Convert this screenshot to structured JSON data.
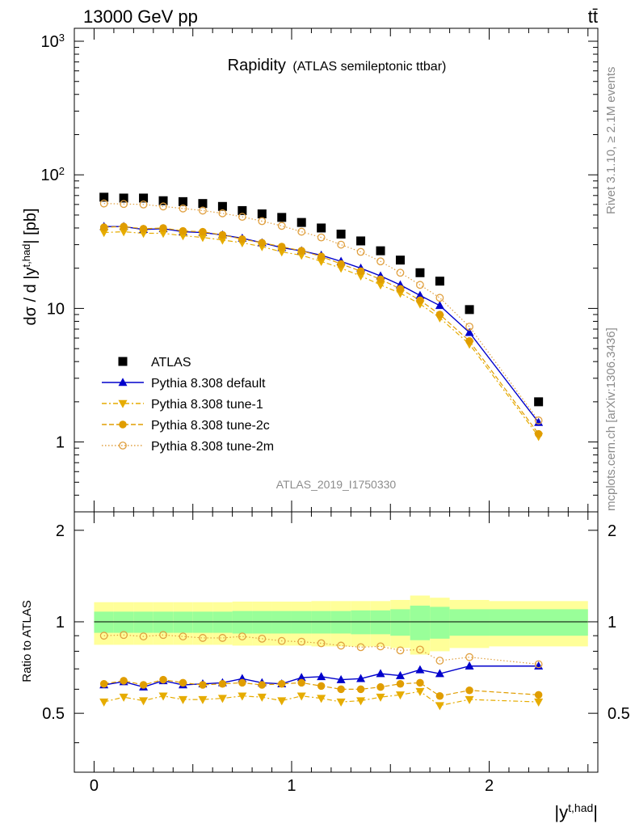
{
  "header": {
    "beam": "13000 GeV pp",
    "process": "tt̄",
    "title_main": "Rapidity",
    "title_sub": "(ATLAS semileptonic ttbar)",
    "analysis_id": "ATLAS_2019_I1750330",
    "side_rivet": "Rivet 3.1.10, ≥ 2.1M events",
    "side_mcplots": "mcplots.cern.ch [arXiv:1306.3436]"
  },
  "axes": {
    "main_ylabel": "dσ / d |y^t,had| [pb]",
    "ratio_ylabel": "Ratio to ATLAS",
    "xlabel": "|y^t,had|",
    "main_yticks": [
      {
        "v": 1,
        "label": "1"
      },
      {
        "v": 10,
        "label": "10"
      },
      {
        "v": 100,
        "label": "10²"
      },
      {
        "v": 1000,
        "label": "10³"
      }
    ],
    "ratio_yticks": [
      {
        "v": 0.5,
        "label": "0.5"
      },
      {
        "v": 1,
        "label": "1"
      },
      {
        "v": 2,
        "label": "2"
      }
    ],
    "xticks": [
      {
        "v": 0,
        "label": "0"
      },
      {
        "v": 1,
        "label": "1"
      },
      {
        "v": 2,
        "label": "2"
      }
    ]
  },
  "chart_data": {
    "type": "scatter",
    "x_centers": [
      0.05,
      0.15,
      0.25,
      0.35,
      0.45,
      0.55,
      0.65,
      0.75,
      0.85,
      0.95,
      1.05,
      1.15,
      1.25,
      1.35,
      1.45,
      1.55,
      1.65,
      1.75,
      1.9,
      2.25
    ],
    "x_edges": [
      0.0,
      0.1,
      0.2,
      0.3,
      0.4,
      0.5,
      0.6,
      0.7,
      0.8,
      0.9,
      1.0,
      1.1,
      1.2,
      1.3,
      1.4,
      1.5,
      1.6,
      1.7,
      1.8,
      2.0,
      2.5
    ],
    "xlim": [
      -0.1,
      2.55
    ],
    "ylim_main": [
      0.3,
      1250
    ],
    "log_y_main": true,
    "ylim_ratio": [
      0.32,
      2.3
    ],
    "log_y_ratio": true,
    "band_inner": [
      0.08,
      0.08,
      0.08,
      0.08,
      0.08,
      0.08,
      0.08,
      0.085,
      0.085,
      0.085,
      0.085,
      0.085,
      0.085,
      0.09,
      0.09,
      0.1,
      0.13,
      0.12,
      0.1,
      0.1
    ],
    "band_outer": [
      0.16,
      0.16,
      0.16,
      0.16,
      0.16,
      0.16,
      0.16,
      0.165,
      0.165,
      0.165,
      0.165,
      0.17,
      0.17,
      0.17,
      0.17,
      0.18,
      0.22,
      0.2,
      0.18,
      0.17
    ],
    "series": [
      {
        "name": "ATLAS",
        "marker": "square",
        "color": "#000000",
        "values": [
          68,
          67,
          67,
          64,
          63,
          61,
          58,
          54,
          51,
          48,
          44,
          40,
          36,
          32,
          27,
          23,
          18.5,
          16,
          9.8,
          2.0
        ],
        "ratio": null
      },
      {
        "name": "Pythia 8.308 default",
        "marker": "triangle-up",
        "color": "#0000cc",
        "line": "solid",
        "values": [
          41,
          41,
          39,
          39.5,
          37.5,
          37,
          35.5,
          33.5,
          31,
          28.5,
          27,
          25,
          22.5,
          20,
          17.5,
          15,
          12.5,
          10.5,
          6.6,
          1.4
        ],
        "ratio": [
          0.62,
          0.635,
          0.61,
          0.64,
          0.62,
          0.625,
          0.63,
          0.65,
          0.63,
          0.625,
          0.655,
          0.66,
          0.645,
          0.65,
          0.675,
          0.665,
          0.695,
          0.675,
          0.715,
          0.715
        ]
      },
      {
        "name": "Pythia 8.308 tune-1",
        "marker": "triangle-down",
        "color": "#e6ac00",
        "line": "dashdot",
        "values": [
          37,
          37.5,
          36.5,
          36.5,
          35,
          34,
          32.5,
          31,
          29,
          26.5,
          25,
          22.5,
          20,
          17.5,
          15,
          13,
          10.8,
          8.5,
          5.4,
          1.1
        ],
        "ratio": [
          0.545,
          0.565,
          0.55,
          0.57,
          0.555,
          0.555,
          0.56,
          0.57,
          0.565,
          0.55,
          0.57,
          0.56,
          0.545,
          0.55,
          0.565,
          0.575,
          0.59,
          0.53,
          0.555,
          0.545
        ]
      },
      {
        "name": "Pythia 8.308 tune-2c",
        "marker": "circle",
        "color": "#e09d00",
        "line": "dashed",
        "values": [
          40.5,
          41,
          39.5,
          40,
          38,
          37.5,
          35.5,
          33,
          31,
          29,
          27,
          24.5,
          21.5,
          19,
          16.5,
          14,
          11.5,
          9,
          5.7,
          1.15
        ],
        "ratio": [
          0.625,
          0.64,
          0.62,
          0.645,
          0.63,
          0.62,
          0.625,
          0.63,
          0.62,
          0.625,
          0.63,
          0.615,
          0.6,
          0.6,
          0.61,
          0.625,
          0.63,
          0.57,
          0.595,
          0.575
        ]
      },
      {
        "name": "Pythia 8.308 tune-2m",
        "marker": "circle-open",
        "color": "#e0a040",
        "line": "dotted",
        "values": [
          61,
          60.5,
          60,
          58,
          56,
          54,
          51.5,
          48.5,
          45,
          41.5,
          37.5,
          34,
          30,
          26.5,
          22.5,
          18.5,
          15,
          12,
          7.3,
          1.45
        ],
        "ratio": [
          0.9,
          0.905,
          0.895,
          0.905,
          0.895,
          0.885,
          0.885,
          0.895,
          0.88,
          0.865,
          0.86,
          0.85,
          0.835,
          0.825,
          0.83,
          0.805,
          0.81,
          0.745,
          0.765,
          0.725
        ]
      }
    ]
  }
}
